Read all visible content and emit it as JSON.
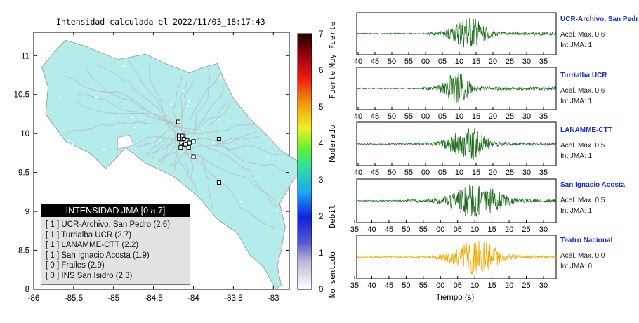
{
  "map": {
    "title": "Intensidad calculada el 2022/11/03_18:17:43",
    "lon_ticks": [
      "-86",
      "-85.5",
      "-85",
      "-84.5",
      "-84",
      "-83.5",
      "-83"
    ],
    "lat_ticks": [
      "11",
      "10.5",
      "10",
      "9.5",
      "9",
      "8.5",
      "8"
    ],
    "xlim": [
      -86,
      -82.8
    ],
    "ylim": [
      8,
      11.3
    ],
    "land_color": "#b4ebeb",
    "road_color": "#bdbdbd"
  },
  "legend": {
    "title": "INTENSIDAD JMA [0 a 7]",
    "entries": [
      "[ 1 ] UCR-Archivo, San Pedro (2.6)",
      "[ 1 ] Turrialba UCR (2.7)",
      "[ 1 ] LANAMME-CTT (2.2)",
      "[ 1 ] San Ignacio Acosta (1.9)",
      "[ 0 ] Frailes (2.9)",
      "[ 0 ] INS San Isidro (2.3)"
    ]
  },
  "colorbar": {
    "ticks": [
      "0",
      "1",
      "2",
      "3",
      "4",
      "5",
      "6",
      "7"
    ],
    "range": [
      0,
      7
    ],
    "category_labels": [
      "No sentido",
      "Debil",
      "Moderado",
      "Fuerte",
      "Muy Fuerte"
    ]
  },
  "chart_data": {
    "type": "line",
    "x_axis_label": "Tiempo (s)",
    "stations": [
      {
        "name": "UCR-Archivo, San Pedro",
        "acel_label": "Acel. Max. 0.6",
        "int_label": "Int JMA: 1",
        "color": "#1c6e1c",
        "ticks": [
          "40",
          "45",
          "50",
          "55",
          "00",
          "05",
          "10",
          "15",
          "20",
          "25",
          "30",
          "35"
        ]
      },
      {
        "name": "Turrialba UCR",
        "acel_label": "Acel. Max. 0.6",
        "int_label": "Int JMA: 1",
        "color": "#1c6e1c",
        "ticks": [
          "40",
          "45",
          "50",
          "55",
          "00",
          "05",
          "10",
          "15",
          "20",
          "25",
          "30",
          "35"
        ]
      },
      {
        "name": "LANAMME-CTT",
        "acel_label": "Acel. Max. 0.5",
        "int_label": "Int JMA: 1",
        "color": "#1c6e1c",
        "ticks": [
          "40",
          "45",
          "50",
          "55",
          "00",
          "05",
          "10",
          "15",
          "20",
          "25",
          "30",
          "35"
        ]
      },
      {
        "name": "San Ignacio Acosta",
        "acel_label": "Acel. Max. 0.5",
        "int_label": "Int JMA: 1",
        "color": "#1c6e1c",
        "ticks": [
          "35",
          "40",
          "45",
          "50",
          "55",
          "00",
          "05",
          "10",
          "15",
          "20",
          "25",
          "30"
        ]
      },
      {
        "name": "Teatro Nacional",
        "acel_label": "Acel. Max. 0.0",
        "int_label": "Int JMA: 0",
        "color": "#f2a900",
        "ticks": [
          "35",
          "40",
          "45",
          "50",
          "55",
          "00",
          "05",
          "10",
          "15",
          "20",
          "25",
          "30"
        ]
      }
    ]
  }
}
